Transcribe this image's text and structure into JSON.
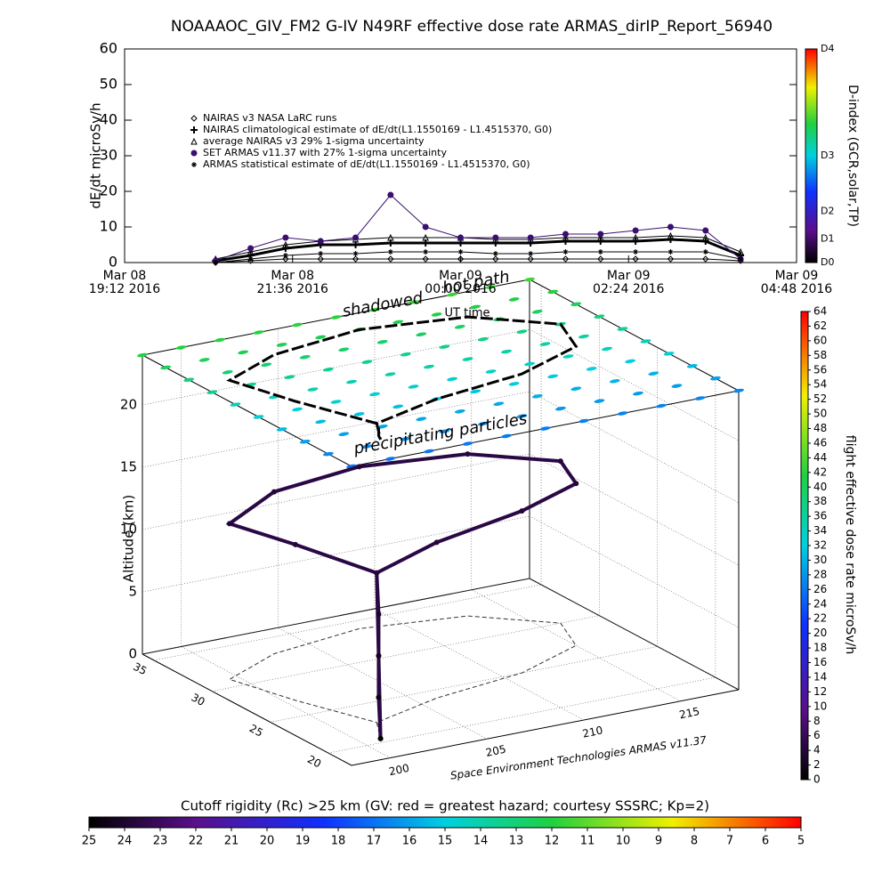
{
  "chart_data": [
    {
      "type": "scatter",
      "title": "NOAAAOC_GIV_FM2 G-IV    N49RF   effective dose rate ARMAS_dirIP_Report_56940",
      "ylabel": "dE/dt microSv/h",
      "xlabel": "UT time",
      "xlim": [
        "2016-03-08T19:12",
        "2016-03-09T04:48"
      ],
      "xticks": [
        {
          "value": "2016-03-08T19:12",
          "label": "Mar 08\n19:12 2016"
        },
        {
          "value": "2016-03-08T21:36",
          "label": "Mar 08\n21:36 2016"
        },
        {
          "value": "2016-03-09T00:00",
          "label": "Mar 09\n00:00 2016"
        },
        {
          "value": "2016-03-09T02:24",
          "label": "Mar 09\n02:24 2016"
        },
        {
          "value": "2016-03-09T04:48",
          "label": "Mar 09\n04:48 2016"
        }
      ],
      "ylim": [
        0,
        60
      ],
      "yticks": [
        0,
        10,
        20,
        30,
        40,
        50,
        60
      ],
      "x": [
        "2016-03-08T20:30",
        "2016-03-08T21:00",
        "2016-03-08T21:30",
        "2016-03-08T22:00",
        "2016-03-08T22:30",
        "2016-03-08T23:00",
        "2016-03-08T23:30",
        "2016-03-09T00:00",
        "2016-03-09T00:30",
        "2016-03-09T01:00",
        "2016-03-09T01:30",
        "2016-03-09T02:00",
        "2016-03-09T02:30",
        "2016-03-09T03:00",
        "2016-03-09T03:30",
        "2016-03-09T04:00"
      ],
      "series": [
        {
          "name": "NAIRAS v3 NASA LaRC runs",
          "marker": "diamond",
          "color": "#000000",
          "values": [
            0,
            0.5,
            1,
            1,
            1,
            1,
            1,
            1,
            1,
            1,
            1,
            1,
            1,
            1,
            1,
            0.5
          ]
        },
        {
          "name": "NAIRAS climatological estimate of dE/dt(L1.1550169 - L1.4515370, G0)",
          "marker": "plus",
          "color": "#000000",
          "values": [
            0.5,
            2,
            4,
            5,
            5,
            5.5,
            5.5,
            5.5,
            5.5,
            5.5,
            6,
            6,
            6,
            6.5,
            6,
            2
          ]
        },
        {
          "name": "average NAIRAS v3 29% 1-sigma uncertainty",
          "marker": "triangle",
          "color": "#000000",
          "values": [
            1,
            3,
            5,
            6,
            6.5,
            7,
            7,
            7,
            6.5,
            6.5,
            7,
            7,
            7,
            7.5,
            7,
            3
          ]
        },
        {
          "name": "SET ARMAS v11.37 with 27% 1-sigma uncertainty",
          "marker": "circle",
          "color": "#3b0f70",
          "values": [
            0.5,
            4,
            7,
            6,
            7,
            19,
            10,
            7,
            7,
            7,
            8,
            8,
            9,
            10,
            9,
            1
          ]
        },
        {
          "name": "ARMAS statistical estimate of dE/dt(L1.1550169 - L1.4515370, G0)",
          "marker": "asterisk",
          "color": "#000000",
          "values": [
            0,
            1,
            2,
            2.5,
            2.5,
            3,
            3,
            3,
            2.5,
            2.5,
            3,
            3,
            3,
            3,
            3,
            1
          ]
        }
      ],
      "colorbar": {
        "label": "D-index (GCR,solar,TP)",
        "ticks": [
          "D0",
          "D1",
          "D2",
          "D3",
          "D4"
        ]
      }
    },
    {
      "type": "scatter3d",
      "zlabel": "Altitude (km)",
      "xlim": [
        198,
        218
      ],
      "xticks": [
        200,
        205,
        210,
        215
      ],
      "ylim": [
        18,
        36
      ],
      "yticks": [
        20,
        25,
        30,
        35
      ],
      "zlim": [
        0,
        24
      ],
      "zticks": [
        0,
        5,
        10,
        15,
        20
      ],
      "annotations": [
        "shadowed",
        "hot path",
        "precipitating particles",
        "Space Environment Technologies ARMAS v11.37"
      ],
      "track": {
        "lon": [
          201,
          201.2,
          201.5,
          201.8,
          202,
          200.5,
          199.5,
          203,
          208,
          213,
          216,
          215,
          211,
          206,
          202,
          201.5,
          201
        ],
        "lat": [
          20.5,
          21,
          21.5,
          22,
          22.5,
          27,
          31,
          33,
          34,
          33,
          30,
          27,
          25,
          24,
          22.5,
          21.5,
          20.5
        ],
        "alt": [
          0,
          3,
          6,
          9,
          12,
          12.5,
          12.5,
          13,
          13,
          13,
          13,
          13,
          13,
          12.5,
          12,
          6,
          0
        ],
        "dose": [
          0,
          1,
          2,
          3,
          4,
          4,
          4,
          4,
          4,
          4,
          4,
          4,
          4,
          4,
          4,
          2,
          0
        ]
      },
      "dose_colorbar": {
        "label": "flight effective dose rate microSv/h",
        "lim": [
          0,
          64
        ],
        "ticks": [
          0,
          2,
          4,
          6,
          8,
          10,
          12,
          14,
          16,
          18,
          20,
          22,
          24,
          26,
          28,
          30,
          32,
          34,
          36,
          38,
          40,
          42,
          44,
          46,
          48,
          50,
          52,
          54,
          56,
          58,
          60,
          62,
          64
        ]
      },
      "rc_field": {
        "lon": [
          198,
          200,
          202,
          204,
          206,
          208,
          210,
          212,
          214,
          216,
          218
        ],
        "lat": [
          18,
          20,
          22,
          24,
          26,
          28,
          30,
          32,
          34,
          36
        ],
        "values": [
          [
            17.0,
            17.0,
            16.9,
            16.9,
            16.8,
            16.8,
            16.7,
            16.7,
            16.6,
            16.6,
            16.5
          ],
          [
            16.5,
            16.5,
            16.4,
            16.4,
            16.3,
            16.3,
            16.2,
            16.2,
            16.1,
            16.1,
            16.0
          ],
          [
            16.0,
            16.0,
            15.9,
            15.9,
            15.8,
            15.8,
            15.7,
            15.7,
            15.6,
            15.6,
            15.5
          ],
          [
            15.4,
            15.4,
            15.3,
            15.3,
            15.2,
            15.2,
            15.1,
            15.1,
            15.0,
            15.0,
            14.9
          ],
          [
            14.8,
            14.8,
            14.7,
            14.7,
            14.6,
            14.6,
            14.5,
            14.5,
            14.4,
            14.4,
            14.3
          ],
          [
            14.2,
            14.2,
            14.1,
            14.1,
            14.0,
            14.0,
            13.9,
            13.9,
            13.8,
            13.8,
            13.7
          ],
          [
            13.6,
            13.6,
            13.5,
            13.5,
            13.4,
            13.4,
            13.3,
            13.3,
            13.2,
            13.2,
            13.1
          ],
          [
            13.0,
            13.0,
            12.9,
            12.9,
            12.8,
            12.8,
            12.7,
            12.7,
            12.6,
            12.6,
            12.5
          ],
          [
            12.5,
            12.5,
            12.4,
            12.4,
            12.3,
            12.3,
            12.2,
            12.2,
            12.1,
            12.1,
            12.0
          ],
          [
            12.0,
            12.0,
            11.9,
            11.9,
            11.8,
            11.8,
            11.7,
            11.7,
            11.6,
            11.6,
            11.5
          ]
        ]
      },
      "rc_colorbar": {
        "label": "Cutoff rigidity (Rc) >25 km (GV: red = greatest hazard; courtesy SSSRC; Kp=2)",
        "lim": [
          25,
          5
        ],
        "ticks": [
          25,
          24,
          23,
          22,
          21,
          20,
          19,
          18,
          17,
          16,
          15,
          14,
          13,
          12,
          11,
          10,
          9,
          8,
          7,
          6,
          5
        ]
      }
    }
  ]
}
